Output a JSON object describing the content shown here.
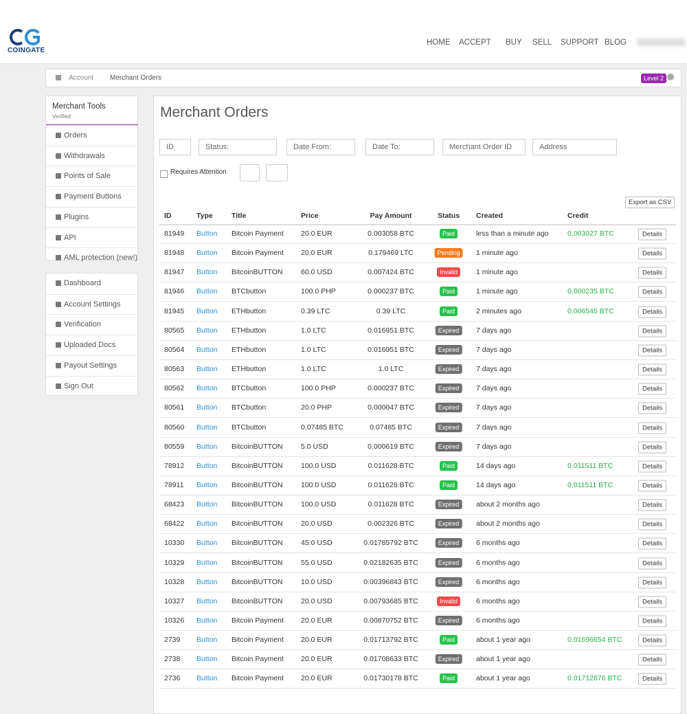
{
  "header": {
    "logo_text": "COINGATE",
    "nav": [
      "HOME",
      "ACCEPT",
      "BUY",
      "SELL",
      "SUPPORT",
      "BLOG"
    ]
  },
  "breadcrumb": {
    "items": [
      "Account",
      "Merchant Orders"
    ],
    "level": "Level 2"
  },
  "sidebar": {
    "title": "Merchant Tools",
    "subtitle": "Verified",
    "groups": [
      [
        "Orders",
        "Withdrawals",
        "Points of Sale",
        "Payment Buttons",
        "Plugins",
        "API",
        "AML protection (new!)"
      ],
      [
        "Dashboard",
        "Account Settings",
        "Verification",
        "Uploaded Docs",
        "Payout Settings",
        "Sign Out"
      ]
    ]
  },
  "main": {
    "title": "Merchant Orders",
    "filters": [
      "ID",
      "Status:",
      "Date From:",
      "Date To:",
      "Merchant Order ID",
      "Address"
    ],
    "requires_attention": "Requires Attention",
    "export": "Export as CSV",
    "details": "Details",
    "status_colors": {
      "Paid": "#27c24c",
      "Pending": "#f47c20",
      "Invalid": "#ee4b4b",
      "Expired": "#6f6f6f"
    },
    "table": {
      "columns": [
        "ID",
        "Type",
        "Title",
        "Price",
        "Pay Amount",
        "Status",
        "Created",
        "Credit"
      ],
      "rows": [
        [
          "81949",
          "Button",
          "Bitcoin Payment",
          "20.0 EUR",
          "0.003058 BTC",
          "Paid",
          "less than a minute ago",
          "0.003027 BTC"
        ],
        [
          "81948",
          "Button",
          "Bitcoin Payment",
          "20.0 EUR",
          "0.179469 LTC",
          "Pending",
          "1 minute ago",
          null
        ],
        [
          "81947",
          "Button",
          "BitcoinBUTTON",
          "60.0 USD",
          "0.007424 BTC",
          "Invalid",
          "1 minute ago",
          null
        ],
        [
          "81946",
          "Button",
          "BTCbutton",
          "100.0 PHP",
          "0.000237 BTC",
          "Paid",
          "1 minute ago",
          "0.000235 BTC"
        ],
        [
          "81945",
          "Button",
          "ETHbutton",
          "0.39 LTC",
          "0.39 LTC",
          "Paid",
          "2 minutes ago",
          "0.006545 BTC"
        ],
        [
          "80565",
          "Button",
          "ETHbutton",
          "1.0 LTC",
          "0.016951 BTC",
          "Expired",
          "7 days ago",
          null
        ],
        [
          "80564",
          "Button",
          "ETHbutton",
          "1.0 LTC",
          "0.016951 BTC",
          "Expired",
          "7 days ago",
          null
        ],
        [
          "80563",
          "Button",
          "ETHbutton",
          "1.0 LTC",
          "1.0 LTC",
          "Expired",
          "7 days ago",
          null
        ],
        [
          "80562",
          "Button",
          "BTCbutton",
          "100.0 PHP",
          "0.000237 BTC",
          "Expired",
          "7 days ago",
          null
        ],
        [
          "80561",
          "Button",
          "BTCbutton",
          "20.0 PHP",
          "0.000047 BTC",
          "Expired",
          "7 days ago",
          null
        ],
        [
          "80560",
          "Button",
          "BTCbutton",
          "0.07485 BTC",
          "0.07485 BTC",
          "Expired",
          "7 days ago",
          null
        ],
        [
          "80559",
          "Button",
          "BitcoinBUTTON",
          "5.0 USD",
          "0.000619 BTC",
          "Expired",
          "7 days ago",
          null
        ],
        [
          "78912",
          "Button",
          "BitcoinBUTTON",
          "100.0 USD",
          "0.011628 BTC",
          "Paid",
          "14 days ago",
          "0.011511 BTC"
        ],
        [
          "78911",
          "Button",
          "BitcoinBUTTON",
          "100.0 USD",
          "0.011628 BTC",
          "Paid",
          "14 days ago",
          "0.011511 BTC"
        ],
        [
          "68423",
          "Button",
          "BitcoinBUTTON",
          "100.0 USD",
          "0.011628 BTC",
          "Expired",
          "about 2 months ago",
          null
        ],
        [
          "68422",
          "Button",
          "BitcoinBUTTON",
          "20.0 USD",
          "0.002326 BTC",
          "Expired",
          "about 2 months ago",
          null
        ],
        [
          "10330",
          "Button",
          "BitcoinBUTTON",
          "45.0 USD",
          "0.01785792 BTC",
          "Expired",
          "6 months ago",
          null
        ],
        [
          "10329",
          "Button",
          "BitcoinBUTTON",
          "55.0 USD",
          "0.02182635 BTC",
          "Expired",
          "6 months ago",
          null
        ],
        [
          "10328",
          "Button",
          "BitcoinBUTTON",
          "10.0 USD",
          "0.00396843 BTC",
          "Expired",
          "6 months ago",
          null
        ],
        [
          "10327",
          "Button",
          "BitcoinBUTTON",
          "20.0 USD",
          "0.00793685 BTC",
          "Invalid",
          "6 months ago",
          null
        ],
        [
          "10326",
          "Button",
          "Bitcoin Payment",
          "20.0 EUR",
          "0.00870752 BTC",
          "Expired",
          "6 months ago",
          null
        ],
        [
          "2739",
          "Button",
          "Bitcoin Payment",
          "20.0 EUR",
          "0.01713792 BTC",
          "Paid",
          "about 1 year ago",
          "0.01696654 BTC"
        ],
        [
          "2738",
          "Button",
          "Bitcoin Payment",
          "20.0 EUR",
          "0.01708633 BTC",
          "Expired",
          "about 1 year ago",
          null
        ],
        [
          "2736",
          "Button",
          "Bitcoin Payment",
          "20.0 EUR",
          "0.01730178 BTC",
          "Paid",
          "about 1 year ago",
          "0.01712876 BTC"
        ]
      ]
    }
  }
}
